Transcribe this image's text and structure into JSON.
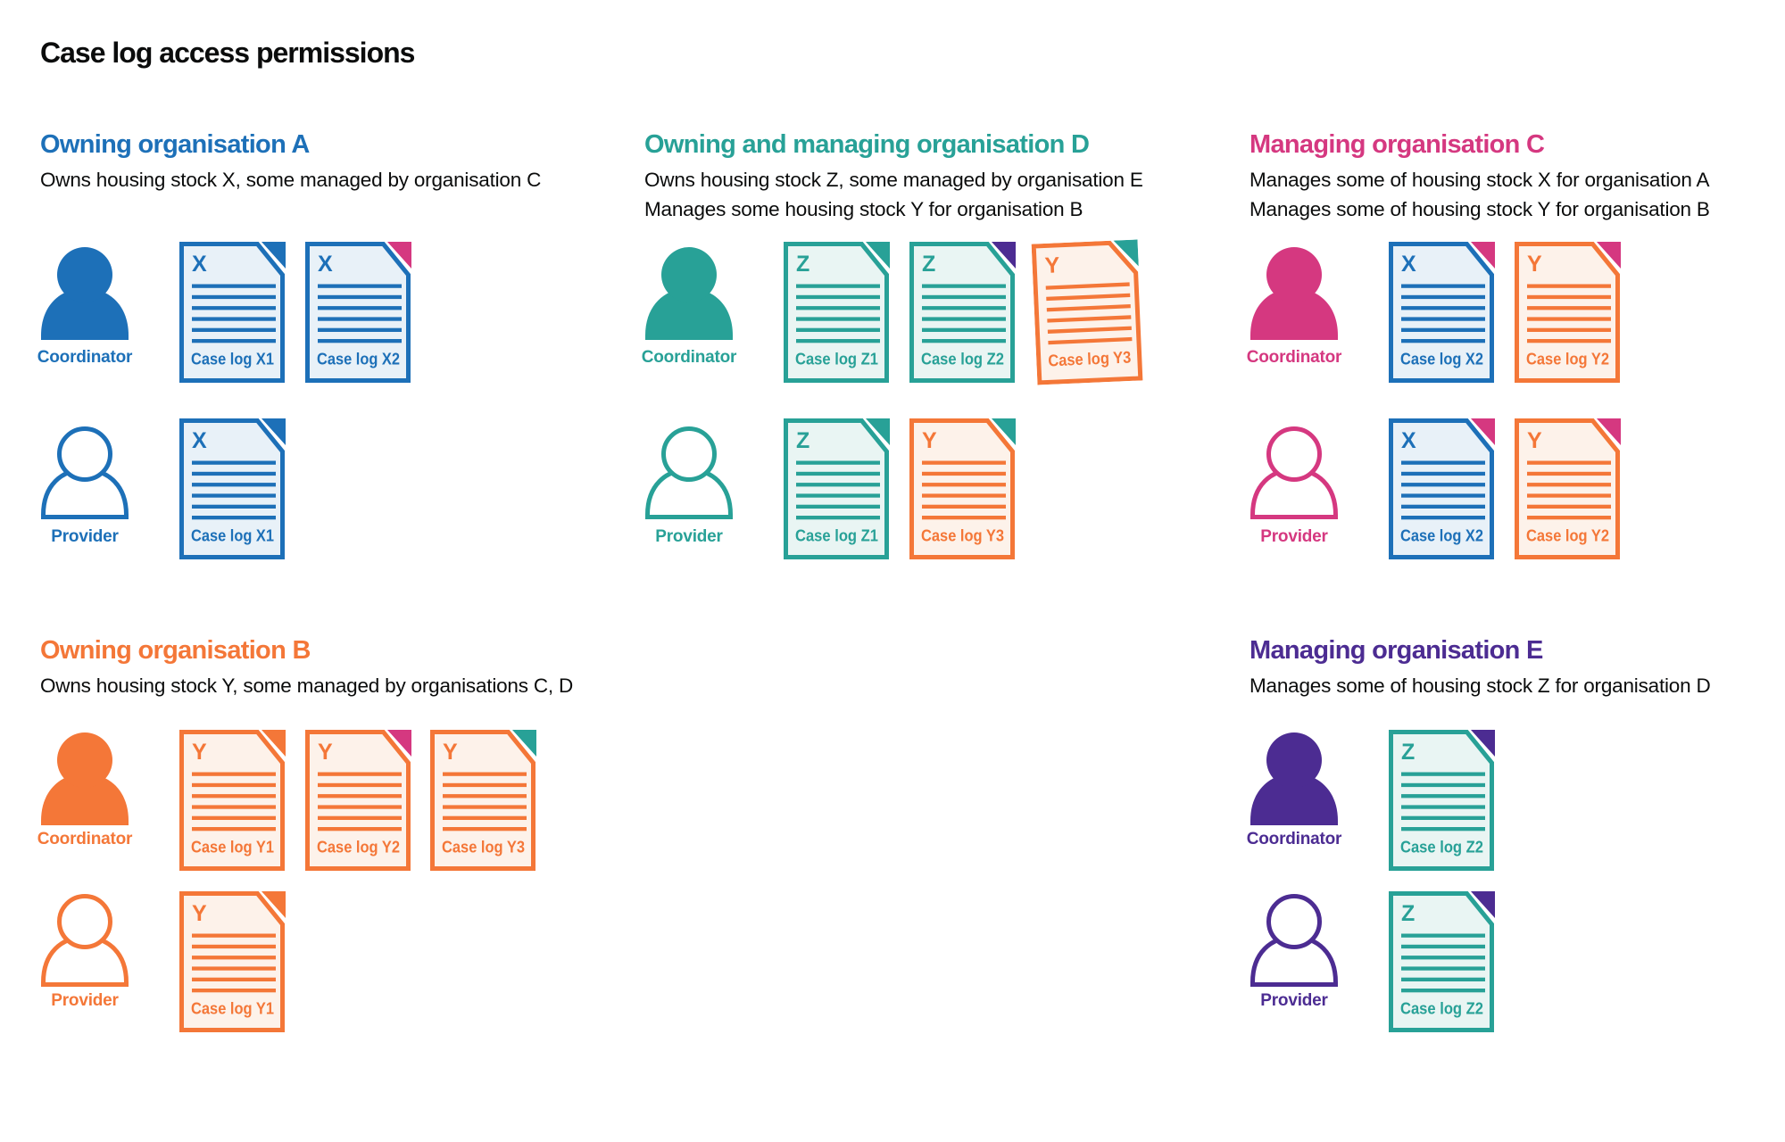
{
  "title": "Case log access permissions",
  "colors": {
    "blue": "#1d70b8",
    "teal": "#28a197",
    "pink": "#d53880",
    "orange": "#f47738",
    "purple": "#4c2c92",
    "text": "#0b0c0c"
  },
  "tints": {
    "blue": "#e8f1f8",
    "teal": "#e9f5f3",
    "orange": "#fdf2ea"
  },
  "roles": {
    "coordinator": "Coordinator",
    "provider": "Provider"
  },
  "sections": [
    {
      "id": "org-a",
      "title": "Owning organisation A",
      "color": "blue",
      "description": [
        "Owns housing stock X, some managed by organisation C"
      ],
      "rows": [
        {
          "role": "Coordinator",
          "docs": [
            {
              "letter": "X",
              "label": "Case log X1",
              "body": "blue",
              "fold": "blue"
            },
            {
              "letter": "X",
              "label": "Case log X2",
              "body": "blue",
              "fold": "pink"
            }
          ]
        },
        {
          "role": "Provider",
          "docs": [
            {
              "letter": "X",
              "label": "Case log X1",
              "body": "blue",
              "fold": "blue"
            }
          ]
        }
      ]
    },
    {
      "id": "org-d",
      "title": "Owning and managing organisation D",
      "color": "teal",
      "description": [
        "Owns housing stock Z, some managed by organisation E",
        "Manages some housing stock Y for organisation B"
      ],
      "rows": [
        {
          "role": "Coordinator",
          "docs": [
            {
              "letter": "Z",
              "label": "Case log Z1",
              "body": "teal",
              "fold": "teal"
            },
            {
              "letter": "Z",
              "label": "Case log Z2",
              "body": "teal",
              "fold": "purple"
            },
            {
              "letter": "Y",
              "label": "Case log Y3",
              "body": "orange",
              "fold": "teal",
              "tilt": -2.5
            }
          ]
        },
        {
          "role": "Provider",
          "docs": [
            {
              "letter": "Z",
              "label": "Case log Z1",
              "body": "teal",
              "fold": "teal"
            },
            {
              "letter": "Y",
              "label": "Case log Y3",
              "body": "orange",
              "fold": "teal"
            }
          ]
        }
      ]
    },
    {
      "id": "org-c",
      "title": "Managing organisation C",
      "color": "pink",
      "description": [
        "Manages some of housing stock X for organisation A",
        "Manages some of housing stock Y for organisation B"
      ],
      "rows": [
        {
          "role": "Coordinator",
          "docs": [
            {
              "letter": "X",
              "label": "Case log X2",
              "body": "blue",
              "fold": "pink"
            },
            {
              "letter": "Y",
              "label": "Case log Y2",
              "body": "orange",
              "fold": "pink"
            }
          ]
        },
        {
          "role": "Provider",
          "docs": [
            {
              "letter": "X",
              "label": "Case log X2",
              "body": "blue",
              "fold": "pink"
            },
            {
              "letter": "Y",
              "label": "Case log Y2",
              "body": "orange",
              "fold": "pink"
            }
          ]
        }
      ]
    },
    {
      "id": "org-b",
      "title": "Owning organisation B",
      "color": "orange",
      "description": [
        "Owns housing stock Y, some managed by organisations C, D"
      ],
      "rows": [
        {
          "role": "Coordinator",
          "docs": [
            {
              "letter": "Y",
              "label": "Case log Y1",
              "body": "orange",
              "fold": "orange"
            },
            {
              "letter": "Y",
              "label": "Case log Y2",
              "body": "orange",
              "fold": "pink"
            },
            {
              "letter": "Y",
              "label": "Case log Y3",
              "body": "orange",
              "fold": "teal"
            }
          ]
        },
        {
          "role": "Provider",
          "docs": [
            {
              "letter": "Y",
              "label": "Case log Y1",
              "body": "orange",
              "fold": "orange"
            }
          ]
        }
      ]
    },
    {
      "id": "org-e",
      "title": "Managing organisation E",
      "color": "purple",
      "description": [
        "Manages some of housing stock Z for organisation D"
      ],
      "rows": [
        {
          "role": "Coordinator",
          "docs": [
            {
              "letter": "Z",
              "label": "Case log Z2",
              "body": "teal",
              "fold": "purple"
            }
          ]
        },
        {
          "role": "Provider",
          "docs": [
            {
              "letter": "Z",
              "label": "Case log Z2",
              "body": "teal",
              "fold": "purple"
            }
          ]
        }
      ]
    }
  ]
}
